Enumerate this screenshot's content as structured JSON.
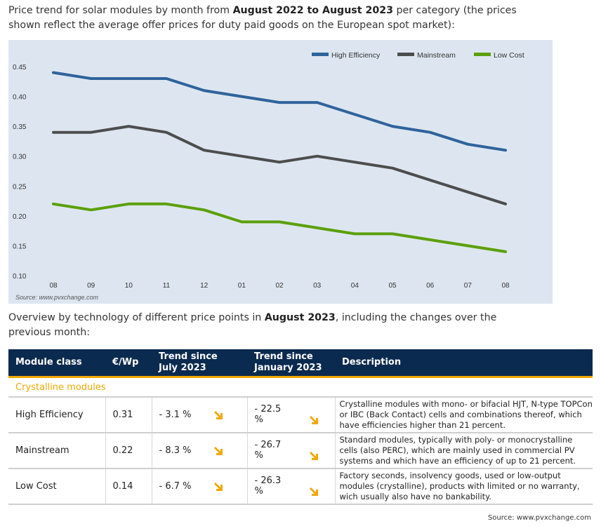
{
  "intro1": {
    "pre": "Price trend for solar modules by month from ",
    "bold": "August 2022 to August 2023",
    "post": " per category (the prices shown reflect the average offer prices for duty paid goods on the European spot market):"
  },
  "intro2": {
    "pre": "Overview by technology of different price points in ",
    "bold": "August 2023",
    "post": ", including the changes over the previous month:"
  },
  "chart_data": {
    "type": "line",
    "title": "",
    "xlabel": "",
    "ylabel": "",
    "categories": [
      "08",
      "09",
      "10",
      "11",
      "12",
      "01",
      "02",
      "03",
      "04",
      "05",
      "06",
      "07",
      "08"
    ],
    "ylim": [
      0.1,
      0.45
    ],
    "yticks": [
      "0.10",
      "0.15",
      "0.20",
      "0.25",
      "0.30",
      "0.35",
      "0.40",
      "0.45"
    ],
    "legend_position": "top-right",
    "grid": false,
    "series": [
      {
        "name": "High Efficiency",
        "color": "#2f639c",
        "values": [
          0.44,
          0.43,
          0.43,
          0.43,
          0.41,
          0.4,
          0.39,
          0.39,
          0.37,
          0.35,
          0.34,
          0.32,
          0.31
        ]
      },
      {
        "name": "Mainstream",
        "color": "#4d4d4d",
        "values": [
          0.34,
          0.34,
          0.35,
          0.34,
          0.31,
          0.3,
          0.29,
          0.3,
          0.29,
          0.28,
          0.26,
          0.24,
          0.22
        ]
      },
      {
        "name": "Low Cost",
        "color": "#5ba00b",
        "values": [
          0.22,
          0.21,
          0.22,
          0.22,
          0.21,
          0.19,
          0.19,
          0.18,
          0.17,
          0.17,
          0.16,
          0.15,
          0.14
        ]
      }
    ],
    "source": "Source: www.pvxchange.com"
  },
  "table": {
    "headers": {
      "module_class": "Module class",
      "price": "€/Wp",
      "trend_july_1": "Trend since",
      "trend_july_2": "July 2023",
      "trend_jan_1": "Trend since",
      "trend_jan_2": "January 2023",
      "description": "Description"
    },
    "group_label": "Crystalline modules",
    "arrow_color": "#f0a800",
    "rows": [
      {
        "module_class": "High Efficiency",
        "price": "0.31",
        "trend_july": "- 3.1 %",
        "trend_jan": "- 22.5 %",
        "description": "Crystalline modules with mono- or bifacial HJT, N-type TOPCon or IBC (Back Contact) cells and combinations thereof, which have efficiencies higher than 21 percent."
      },
      {
        "module_class": "Mainstream",
        "price": "0.22",
        "trend_july": "- 8.3 %",
        "trend_jan": "- 26.7 %",
        "description": "Standard modules, typically with poly- or monocrystalline cells (also PERC), which are mainly used in commercial PV systems and which have an efficiency of up to 21 percent."
      },
      {
        "module_class": "Low Cost",
        "price": "0.14",
        "trend_july": "- 6.7 %",
        "trend_jan": "- 26.3 %",
        "description": "Factory seconds, insolvency goods, used or low-output modules (crystalline), products with limited or no warranty, wich usually also have no bankability."
      }
    ]
  },
  "page_source": "Source: www.pvxchange.com"
}
